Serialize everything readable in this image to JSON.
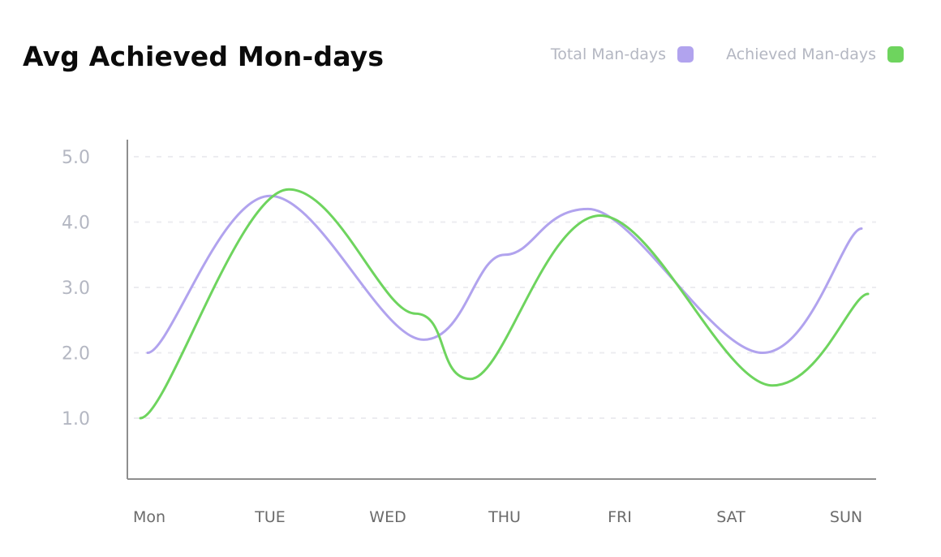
{
  "colors": {
    "total": "#b1a3ee",
    "achieved": "#6ed45e",
    "axis_text": "#b4b7c2",
    "category_text": "#6b6b6b",
    "grid": "#ececf0",
    "axis": "#8e8e8e"
  },
  "chart_data": {
    "type": "line",
    "title": "Avg Achieved Mon-days",
    "xlabel": "",
    "ylabel": "",
    "categories": [
      "Mon",
      "TUE",
      "WED",
      "THU",
      "FRI",
      "SAT",
      "SUN"
    ],
    "y_ticks": [
      "5.0",
      "4.0",
      "3.0",
      "2.0",
      "1.0"
    ],
    "ylim": [
      0.1,
      5.1
    ],
    "grid": true,
    "legend_position": "top-right",
    "legend": [
      {
        "label": "Total Man-days",
        "color": "#b1a3ee"
      },
      {
        "label": "Achieved Man-days",
        "color": "#6ed45e"
      }
    ],
    "series": [
      {
        "name": "Total Man-days",
        "color": "#b1a3ee",
        "points": [
          {
            "day": "Mon",
            "y": 2.0
          },
          {
            "day": "TUE",
            "y": 4.4
          },
          {
            "day": "WED",
            "y": 2.2
          },
          {
            "day": "THU",
            "y": 3.5
          },
          {
            "day": "FRI",
            "y": 4.2
          },
          {
            "day": "SAT",
            "y": 2.0
          },
          {
            "day": "SUN",
            "y": 3.9
          }
        ]
      },
      {
        "name": "Achieved Man-days",
        "color": "#6ed45e",
        "points": [
          {
            "day": "Mon",
            "y": 1.0
          },
          {
            "day": "TUE",
            "y": 4.5
          },
          {
            "day": "WED",
            "y": 2.6
          },
          {
            "day": "THU",
            "y": 1.6
          },
          {
            "day": "FRI",
            "y": 4.1
          },
          {
            "day": "SAT",
            "y": 1.5
          },
          {
            "day": "SUN",
            "y": 2.9
          }
        ]
      }
    ]
  }
}
